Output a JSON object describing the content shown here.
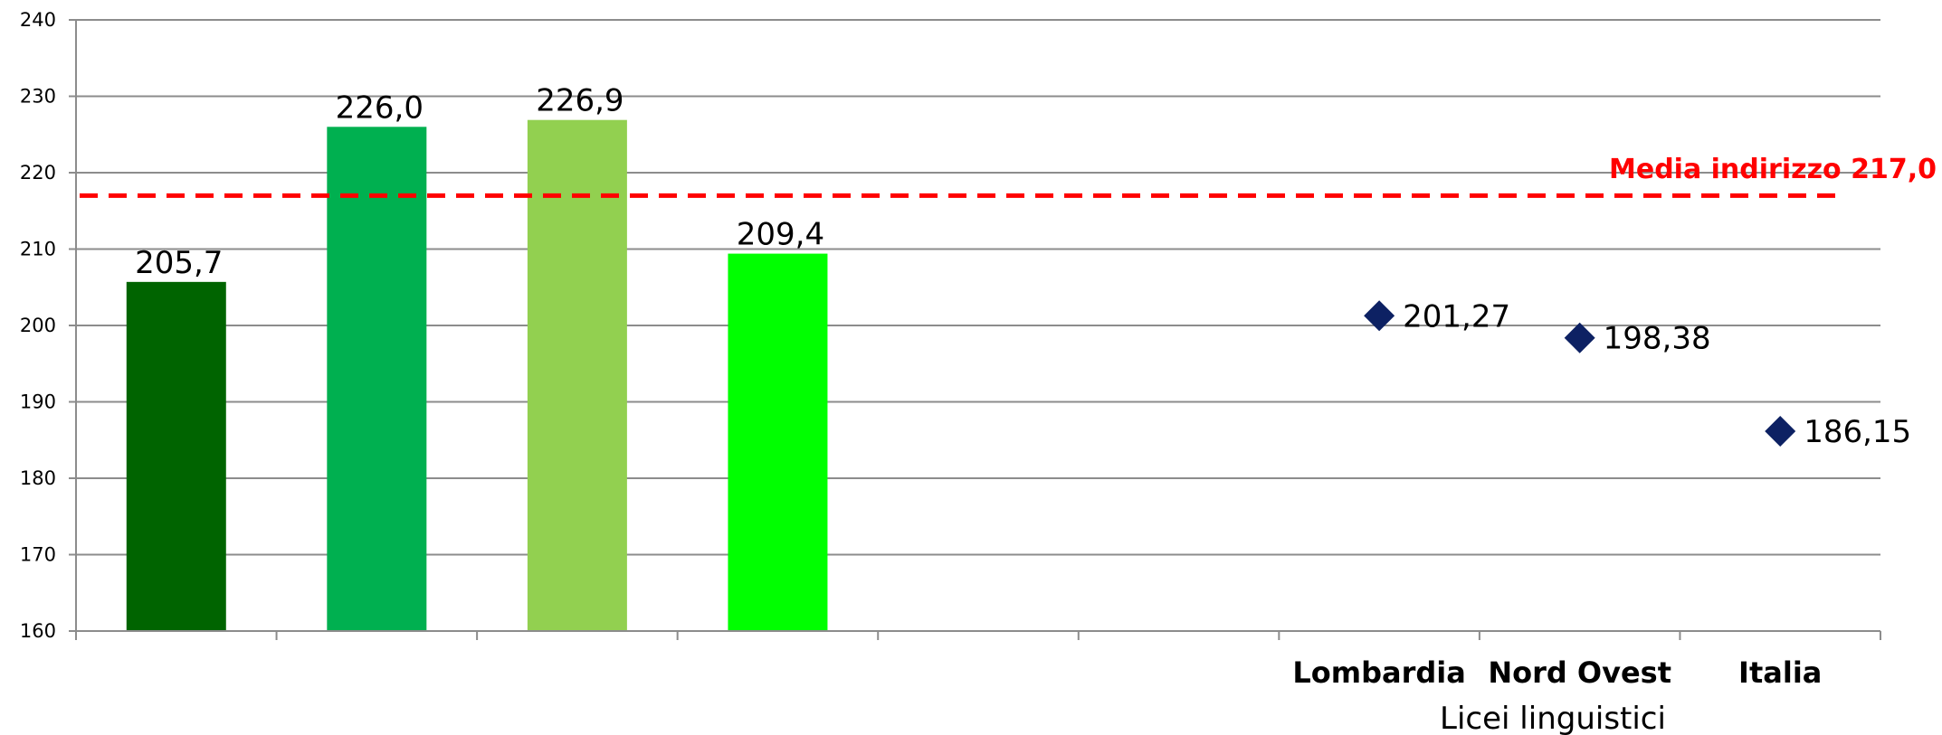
{
  "chart_data": {
    "type": "bar",
    "title": "",
    "xlabel": "Licei linguistici",
    "ylabel": "",
    "ylim": [
      160,
      240
    ],
    "yticks": [
      160,
      170,
      180,
      190,
      200,
      210,
      220,
      230,
      240
    ],
    "grid": true,
    "categories": [
      "",
      "",
      "",
      "",
      "",
      "",
      "Lombardia",
      "Nord Ovest",
      "Italia"
    ],
    "bars": [
      {
        "value": 205.7,
        "label": "205,7",
        "color": "#006400"
      },
      {
        "value": 226.0,
        "label": "226,0",
        "color": "#00B050"
      },
      {
        "value": 226.9,
        "label": "226,9",
        "color": "#92D050"
      },
      {
        "value": 209.4,
        "label": "209,4",
        "color": "#00FF00"
      }
    ],
    "points": [
      {
        "category_index": 6,
        "value": 201.27,
        "label": "201,27"
      },
      {
        "category_index": 7,
        "value": 198.38,
        "label": "198,38"
      },
      {
        "category_index": 8,
        "value": 186.15,
        "label": "186,15"
      }
    ],
    "marker_color": "#0D2163",
    "reference_line": {
      "value": 217.0,
      "label": "Media indirizzo 217,0",
      "color": "#FF0000"
    }
  }
}
